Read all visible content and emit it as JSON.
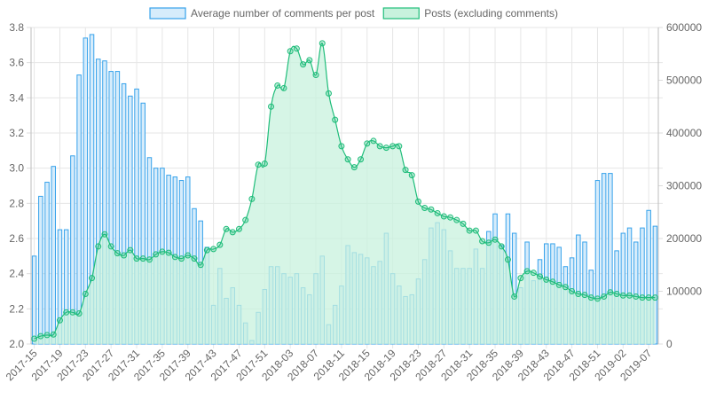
{
  "chart_data": {
    "type": "bar",
    "legend": {
      "position": "top",
      "items": [
        {
          "label": "Average number of comments per post",
          "color": "#36a2eb",
          "fill": "#d6ecfb"
        },
        {
          "label": "Posts (excluding comments)",
          "color": "#1fbd7a",
          "fill": "#c8f2dd"
        }
      ]
    },
    "x_tick_labels": [
      "2017-15",
      "2017-19",
      "2017-23",
      "2017-27",
      "2017-31",
      "2017-35",
      "2017-39",
      "2017-43",
      "2017-47",
      "2017-51",
      "2018-03",
      "2018-07",
      "2018-11",
      "2018-15",
      "2018-19",
      "2018-23",
      "2018-27",
      "2018-31",
      "2018-35",
      "2018-39",
      "2018-43",
      "2018-47",
      "2018-51",
      "2019-02",
      "2019-07"
    ],
    "x_tick_every": 4,
    "y_left": {
      "min": 2.0,
      "max": 3.8,
      "step": 0.2,
      "ticks": [
        "2.0",
        "2.2",
        "2.4",
        "2.6",
        "2.8",
        "3.0",
        "3.2",
        "3.4",
        "3.6",
        "3.8"
      ]
    },
    "y_right": {
      "min": 0,
      "max": 600000,
      "step": 100000,
      "ticks": [
        "0",
        "100000",
        "200000",
        "300000",
        "400000",
        "500000",
        "600000"
      ]
    },
    "grid": true,
    "series": [
      {
        "name": "Average number of comments per post",
        "type": "bar",
        "axis": "left",
        "values": [
          2.5,
          2.84,
          2.92,
          3.01,
          2.65,
          2.65,
          3.07,
          3.53,
          3.74,
          3.76,
          3.62,
          3.61,
          3.55,
          3.55,
          3.48,
          3.41,
          3.45,
          3.37,
          3.06,
          3.0,
          3.0,
          2.96,
          2.95,
          2.93,
          2.95,
          2.77,
          2.7,
          2.55,
          2.22,
          2.43,
          2.26,
          2.32,
          2.22,
          2.12,
          2.02,
          2.18,
          2.31,
          2.44,
          2.44,
          2.4,
          2.38,
          2.4,
          2.32,
          2.28,
          2.4,
          2.5,
          2.11,
          2.22,
          2.33,
          2.56,
          2.52,
          2.51,
          2.49,
          2.44,
          2.47,
          2.63,
          2.4,
          2.33,
          2.27,
          2.28,
          2.37,
          2.48,
          2.66,
          2.69,
          2.65,
          2.53,
          2.43,
          2.43,
          2.43,
          2.54,
          2.43,
          2.64,
          2.74,
          2.56,
          2.74,
          2.63,
          2.32,
          2.58,
          2.36,
          2.48,
          2.57,
          2.57,
          2.55,
          2.44,
          2.49,
          2.62,
          2.58,
          2.42,
          2.93,
          2.97,
          2.97,
          2.53,
          2.63,
          2.66,
          2.58,
          2.66,
          2.76,
          2.67
        ]
      },
      {
        "name": "Posts (excluding comments)",
        "type": "area",
        "axis": "right",
        "values": [
          10000,
          15000,
          17000,
          18000,
          45000,
          60000,
          60000,
          58000,
          95000,
          125000,
          185000,
          208000,
          185000,
          172000,
          168000,
          178000,
          162000,
          162000,
          160000,
          170000,
          175000,
          173000,
          165000,
          162000,
          168000,
          162000,
          150000,
          178000,
          180000,
          188000,
          218000,
          212000,
          218000,
          235000,
          275000,
          340000,
          342000,
          450000,
          490000,
          485000,
          555000,
          560000,
          530000,
          538000,
          510000,
          570000,
          475000,
          425000,
          375000,
          350000,
          335000,
          350000,
          380000,
          385000,
          375000,
          372000,
          375000,
          375000,
          330000,
          320000,
          270000,
          258000,
          255000,
          248000,
          242000,
          240000,
          235000,
          228000,
          215000,
          215000,
          195000,
          192000,
          198000,
          185000,
          160000,
          90000,
          125000,
          138000,
          135000,
          128000,
          122000,
          118000,
          112000,
          108000,
          100000,
          95000,
          93000,
          88000,
          86000,
          90000,
          98000,
          95000,
          92000,
          92000,
          90000,
          88000,
          88000,
          88000
        ]
      }
    ]
  }
}
